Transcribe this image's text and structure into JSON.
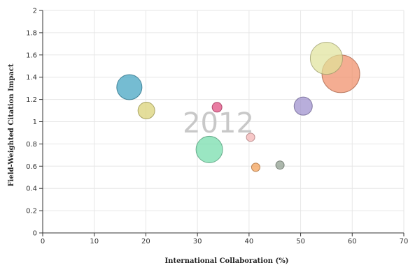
{
  "chart_data": {
    "type": "scatter",
    "title": "",
    "annotation": "2012",
    "xlabel": "International Collaboration (%)",
    "ylabel": "Field-Weighted Citation Impact",
    "xlim": [
      0,
      70
    ],
    "ylim": [
      0,
      2
    ],
    "x_ticks": [
      "0",
      "10",
      "20",
      "30",
      "40",
      "50",
      "60",
      "70"
    ],
    "y_ticks": [
      "0",
      "0.2",
      "0.4",
      "0.6",
      "0.8",
      "1",
      "1.2",
      "1.4",
      "1.6",
      "1.8",
      "2"
    ],
    "grid": true,
    "points": [
      {
        "x": 16.8,
        "y": 1.31,
        "size": 18,
        "color": "#3a9fbf"
      },
      {
        "x": 20.1,
        "y": 1.1,
        "size": 12,
        "color": "#d8d070"
      },
      {
        "x": 32.3,
        "y": 0.75,
        "size": 19,
        "color": "#6fdca8"
      },
      {
        "x": 33.8,
        "y": 1.13,
        "size": 7,
        "color": "#e0457a"
      },
      {
        "x": 40.3,
        "y": 0.86,
        "size": 6,
        "color": "#f4b0b0"
      },
      {
        "x": 41.3,
        "y": 0.59,
        "size": 6,
        "color": "#f39c50"
      },
      {
        "x": 46.0,
        "y": 0.61,
        "size": 6,
        "color": "#8a9a8a"
      },
      {
        "x": 50.5,
        "y": 1.14,
        "size": 13,
        "color": "#9a8ccc"
      },
      {
        "x": 55.0,
        "y": 1.57,
        "size": 23,
        "color": "#e0e29a"
      },
      {
        "x": 57.8,
        "y": 1.43,
        "size": 27,
        "color": "#ef8a64"
      }
    ]
  }
}
